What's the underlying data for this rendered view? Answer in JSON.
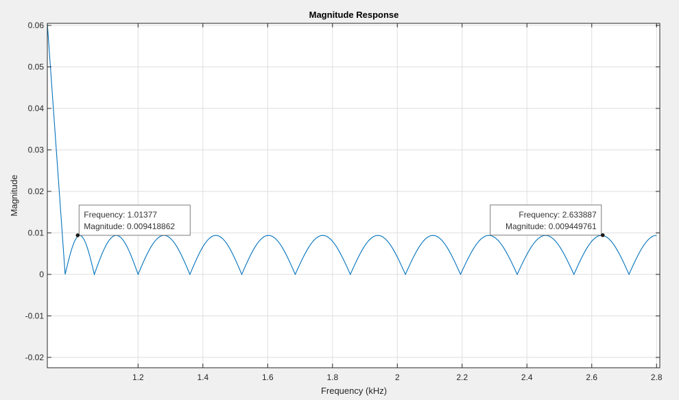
{
  "chart_data": {
    "type": "line",
    "title": "Magnitude Response",
    "xlabel": "Frequency (kHz)",
    "ylabel": "Magnitude",
    "xlim": [
      0.92,
      2.81
    ],
    "ylim": [
      -0.0225,
      0.0605
    ],
    "xticks": [
      1.2,
      1.4,
      1.6,
      1.8,
      2.0,
      2.2,
      2.4,
      2.6,
      2.8
    ],
    "xtick_labels": [
      "1.2",
      "1.4",
      "1.6",
      "1.8",
      "2",
      "2.2",
      "2.4",
      "2.6",
      "2.8"
    ],
    "yticks": [
      -0.02,
      -0.01,
      0,
      0.01,
      0.02,
      0.03,
      0.04,
      0.05,
      0.06
    ],
    "ytick_labels": [
      "-0.02",
      "-0.01",
      "0",
      "0.01",
      "0.02",
      "0.03",
      "0.04",
      "0.05",
      "0.06"
    ],
    "grid": true,
    "series": [
      {
        "color": "#0072bd",
        "zeros": [
          0.975,
          1.065,
          1.2,
          1.36,
          1.52,
          1.685,
          1.855,
          2.025,
          2.195,
          2.37,
          2.545,
          2.715
        ],
        "peaks": [
          0.0094,
          0.0094,
          0.0094,
          0.0094,
          0.0094,
          0.0094,
          0.0094,
          0.0094,
          0.0094,
          0.0094,
          0.0094,
          0.0094
        ],
        "start": [
          0.92,
          0.0605
        ],
        "end": [
          2.8,
          0.0095
        ]
      }
    ],
    "datatips": [
      {
        "x": 1.01377,
        "y": 0.009418862,
        "line1": "Frequency: 1.01377",
        "line2": "Magnitude: 0.009418862",
        "align": "left"
      },
      {
        "x": 2.633887,
        "y": 0.009449761,
        "line1": "Frequency: 2.633887",
        "line2": "Magnitude: 0.009449761",
        "align": "right"
      }
    ]
  }
}
